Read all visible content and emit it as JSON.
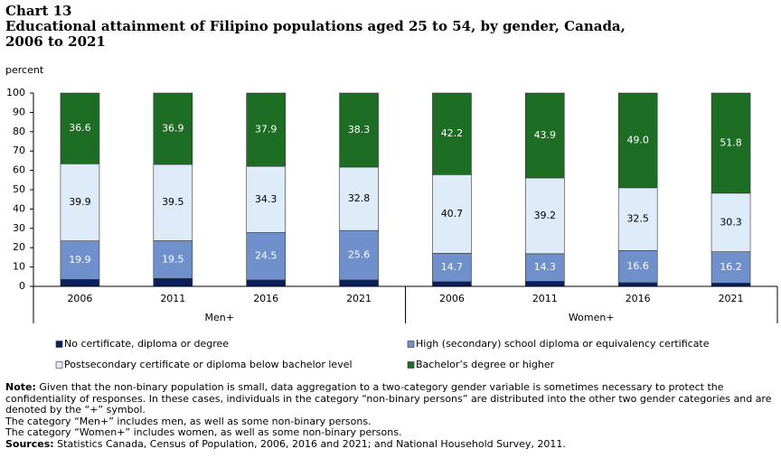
{
  "chart_label": "Chart 13",
  "chart_data": {
    "type": "stacked-bar",
    "title": "Educational attainment of Filipino populations aged 25 to 54, by gender, Canada, 2006 to 2021",
    "y_label": "percent",
    "groups": [
      {
        "name": "Men+",
        "categories": [
          "2006",
          "2011",
          "2016",
          "2021"
        ]
      },
      {
        "name": "Women+",
        "categories": [
          "2006",
          "2011",
          "2016",
          "2021"
        ]
      }
    ],
    "series": [
      {
        "name": "No certificate, diploma or degree",
        "color": "#0b1f5e",
        "labels": false,
        "values": [
          3.6,
          4.1,
          3.3,
          3.3,
          2.4,
          2.6,
          1.9,
          1.7
        ]
      },
      {
        "name": "High (secondary) school diploma or equivalency certificate",
        "color": "#7090cc",
        "labels": true,
        "label_color": "#ffffff",
        "values": [
          19.9,
          19.5,
          24.5,
          25.6,
          14.7,
          14.3,
          16.6,
          16.2
        ]
      },
      {
        "name": "Postsecondary certificate or diploma below bachelor level",
        "color": "#deebf9",
        "labels": true,
        "label_color": "#000000",
        "values": [
          39.9,
          39.5,
          34.3,
          32.8,
          40.7,
          39.2,
          32.5,
          30.3
        ]
      },
      {
        "name": "Bachelor’s degree or higher",
        "color": "#1e6d25",
        "labels": true,
        "label_color": "#ffffff",
        "values": [
          36.6,
          36.9,
          37.9,
          38.3,
          42.2,
          43.9,
          49.0,
          51.8
        ],
        "value_labels": [
          "36.6",
          "36.9",
          "37.9",
          "38.3",
          "42.2",
          "43.9",
          "49.0",
          "51.8"
        ]
      }
    ],
    "ylim": [
      0,
      100
    ],
    "yticks": [
      0,
      10,
      20,
      30,
      40,
      50,
      60,
      70,
      80,
      90,
      100
    ],
    "grid": false
  },
  "notes": {
    "note_label": "Note:",
    "note": "Given that the non-binary population is small, data aggregation to a two-category gender variable is sometimes necessary to protect the confidentiality of responses. In these cases, individuals in the category “non-binary persons” are distributed into the other two gender categories and are denoted by the “+” symbol.",
    "lines": [
      "The category “Men+” includes men, as well as some non-binary persons.",
      "The category “Women+” includes women, as well as some non-binary persons."
    ],
    "sources_label": "Sources:",
    "sources": "Statistics Canada, Census of Population, 2006, 2016 and 2021; and National Household Survey, 2011."
  }
}
